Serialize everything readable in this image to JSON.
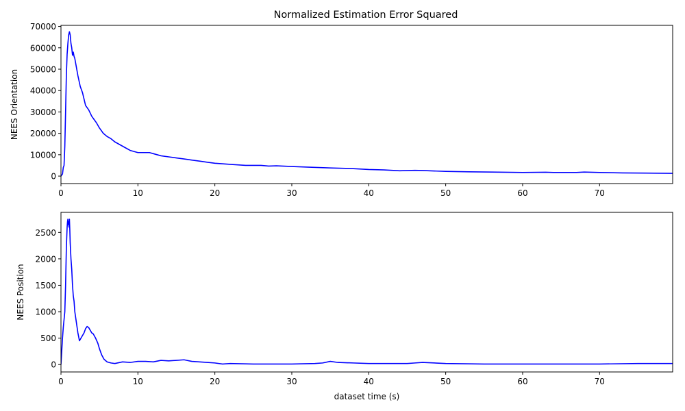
{
  "figure_title": "Normalized Estimation Error Squared",
  "colors": {
    "line": "#0000ff",
    "axes": "#000000",
    "background": "#ffffff"
  },
  "chart_data": [
    {
      "type": "line",
      "title": "Normalized Estimation Error Squared",
      "xlabel": "",
      "ylabel": "NEES Orientation",
      "xlim": [
        0,
        79.5
      ],
      "ylim": [
        -3500,
        70500
      ],
      "xticks": [
        0,
        10,
        20,
        30,
        40,
        50,
        60,
        70
      ],
      "yticks": [
        0,
        10000,
        20000,
        30000,
        40000,
        50000,
        60000,
        70000
      ],
      "grid": false,
      "x": [
        0,
        0.2,
        0.3,
        0.4,
        0.5,
        0.6,
        0.7,
        0.8,
        0.9,
        1.0,
        1.1,
        1.2,
        1.3,
        1.4,
        1.5,
        1.6,
        1.7,
        1.8,
        1.9,
        2.0,
        2.2,
        2.5,
        2.8,
        3.2,
        3.6,
        4.0,
        4.3,
        4.6,
        5.0,
        5.5,
        6.0,
        6.5,
        7.0,
        7.5,
        8.0,
        8.5,
        9.0,
        10.0,
        11.0,
        11.5,
        12.0,
        13.0,
        14.0,
        15.0,
        16.0,
        17.0,
        18.0,
        19.0,
        20.0,
        22.0,
        24.0,
        26.0,
        27.0,
        28.0,
        30.0,
        32.0,
        35.0,
        38.0,
        40.0,
        42.0,
        44.0,
        46.0,
        47.0,
        50.0,
        53.0,
        56.0,
        60.0,
        63.0,
        64.0,
        67.0,
        68.0,
        70.0,
        73.0,
        76.0,
        79.5
      ],
      "series": [
        {
          "values": [
            0,
            1000,
            4000,
            5000,
            14000,
            30000,
            47000,
            57000,
            62000,
            66000,
            67500,
            66000,
            62000,
            60000,
            56500,
            58000,
            56000,
            55000,
            53000,
            51000,
            47000,
            42000,
            39000,
            33000,
            31000,
            28000,
            26500,
            25000,
            22500,
            20000,
            18500,
            17500,
            16000,
            15000,
            14000,
            13000,
            12000,
            11000,
            11000,
            11000,
            10500,
            9500,
            9000,
            8500,
            8000,
            7500,
            7000,
            6500,
            6000,
            5500,
            5000,
            5000,
            4700,
            4800,
            4500,
            4200,
            3800,
            3500,
            3100,
            2900,
            2500,
            2700,
            2600,
            2200,
            2000,
            1900,
            1700,
            1800,
            1700,
            1700,
            1900,
            1700,
            1500,
            1400,
            1300
          ]
        }
      ]
    },
    {
      "type": "line",
      "title": "",
      "xlabel": "dataset time (s)",
      "ylabel": "NEES Position",
      "xlim": [
        0,
        79.5
      ],
      "ylim": [
        -140,
        2880
      ],
      "xticks": [
        0,
        10,
        20,
        30,
        40,
        50,
        60,
        70
      ],
      "yticks": [
        0,
        500,
        1000,
        1500,
        2000,
        2500
      ],
      "grid": false,
      "x": [
        0,
        0.2,
        0.3,
        0.5,
        0.6,
        0.7,
        0.8,
        0.85,
        0.9,
        0.95,
        1.0,
        1.05,
        1.1,
        1.15,
        1.2,
        1.3,
        1.4,
        1.5,
        1.6,
        1.7,
        1.8,
        2.0,
        2.2,
        2.4,
        2.6,
        2.8,
        3.0,
        3.2,
        3.4,
        3.6,
        3.8,
        4.0,
        4.2,
        4.5,
        4.8,
        5.0,
        5.3,
        5.6,
        6.0,
        6.5,
        7.0,
        8.0,
        9.0,
        10.0,
        11.0,
        12.0,
        13.0,
        14.0,
        15.0,
        16.0,
        17.0,
        18.0,
        19.0,
        20.0,
        21.0,
        22.0,
        25.0,
        30.0,
        33.0,
        34.0,
        35.0,
        36.0,
        38.0,
        40.0,
        45.0,
        46.0,
        47.0,
        50.0,
        55.0,
        60.0,
        62.0,
        65.0,
        70.0,
        75.0,
        79.5
      ],
      "series": [
        {
          "values": [
            0,
            500,
            700,
            1000,
            1500,
            2200,
            2600,
            2700,
            2750,
            2650,
            2700,
            2600,
            2750,
            2550,
            2300,
            2000,
            1800,
            1500,
            1300,
            1200,
            1000,
            800,
            600,
            450,
            500,
            550,
            600,
            680,
            720,
            700,
            650,
            600,
            580,
            500,
            400,
            300,
            180,
            100,
            50,
            30,
            20,
            50,
            40,
            60,
            60,
            50,
            80,
            70,
            80,
            90,
            60,
            50,
            40,
            30,
            10,
            20,
            10,
            10,
            20,
            30,
            60,
            40,
            30,
            20,
            20,
            30,
            40,
            20,
            10,
            10,
            10,
            10,
            10,
            20,
            20
          ]
        }
      ]
    }
  ]
}
